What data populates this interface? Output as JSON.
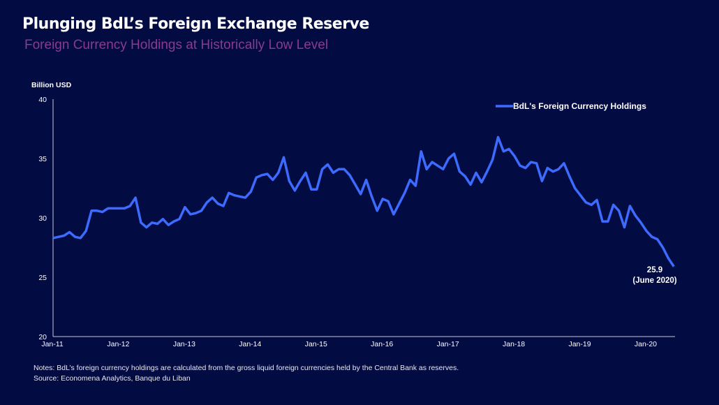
{
  "title": "Plunging BdL’s Foreign Exchange Reserve",
  "subtitle": "Foreign Currency Holdings at Historically Low Level",
  "notes": "Notes: BdL’s foreign currency holdings are calculated from the gross liquid foreign currencies held by the Central Bank as reserves.",
  "source": "Source: Economena Analytics, Banque du Liban",
  "colors": {
    "background": "#020b42",
    "line": "#3d6bff",
    "subtitle": "#8a3a92"
  },
  "chart_data": {
    "type": "line",
    "title": "Plunging BdL’s Foreign Exchange Reserve",
    "ylabel": "Billion USD",
    "xlabel": "",
    "ylim": [
      20,
      40
    ],
    "yticks": [
      "20",
      "25",
      "30",
      "35",
      "40"
    ],
    "xticks": [
      "Jan-11",
      "Jan-12",
      "Jan-13",
      "Jan-14",
      "Jan-15",
      "Jan-16",
      "Jan-17",
      "Jan-18",
      "Jan-19",
      "Jan-20"
    ],
    "grid": false,
    "legend": "top-right",
    "annotation": {
      "value": "25.9",
      "label": "(June 2020)"
    },
    "series": [
      {
        "name": "BdL's Foreign Currency Holdings",
        "x": [
          "2011-01",
          "2011-02",
          "2011-03",
          "2011-04",
          "2011-05",
          "2011-06",
          "2011-07",
          "2011-08",
          "2011-09",
          "2011-10",
          "2011-11",
          "2011-12",
          "2012-01",
          "2012-02",
          "2012-03",
          "2012-04",
          "2012-05",
          "2012-06",
          "2012-07",
          "2012-08",
          "2012-09",
          "2012-10",
          "2012-11",
          "2012-12",
          "2013-01",
          "2013-02",
          "2013-03",
          "2013-04",
          "2013-05",
          "2013-06",
          "2013-07",
          "2013-08",
          "2013-09",
          "2013-10",
          "2013-11",
          "2013-12",
          "2014-01",
          "2014-02",
          "2014-03",
          "2014-04",
          "2014-05",
          "2014-06",
          "2014-07",
          "2014-08",
          "2014-09",
          "2014-10",
          "2014-11",
          "2014-12",
          "2015-01",
          "2015-02",
          "2015-03",
          "2015-04",
          "2015-05",
          "2015-06",
          "2015-07",
          "2015-08",
          "2015-09",
          "2015-10",
          "2015-11",
          "2015-12",
          "2016-01",
          "2016-02",
          "2016-03",
          "2016-04",
          "2016-05",
          "2016-06",
          "2016-07",
          "2016-08",
          "2016-09",
          "2016-10",
          "2016-11",
          "2016-12",
          "2017-01",
          "2017-02",
          "2017-03",
          "2017-04",
          "2017-05",
          "2017-06",
          "2017-07",
          "2017-08",
          "2017-09",
          "2017-10",
          "2017-11",
          "2017-12",
          "2018-01",
          "2018-02",
          "2018-03",
          "2018-04",
          "2018-05",
          "2018-06",
          "2018-07",
          "2018-08",
          "2018-09",
          "2018-10",
          "2018-11",
          "2018-12",
          "2019-01",
          "2019-02",
          "2019-03",
          "2019-04",
          "2019-05",
          "2019-06",
          "2019-07",
          "2019-08",
          "2019-09",
          "2019-10",
          "2019-11",
          "2019-12",
          "2020-01",
          "2020-02",
          "2020-03",
          "2020-04",
          "2020-05",
          "2020-06"
        ],
        "values": [
          28.3,
          28.4,
          28.5,
          28.8,
          28.4,
          28.3,
          28.9,
          30.6,
          30.6,
          30.5,
          30.8,
          30.8,
          30.8,
          30.8,
          31.0,
          31.7,
          29.6,
          29.2,
          29.6,
          29.5,
          29.9,
          29.4,
          29.7,
          29.9,
          30.9,
          30.3,
          30.4,
          30.6,
          31.3,
          31.7,
          31.2,
          31.0,
          32.1,
          31.9,
          31.8,
          31.7,
          32.2,
          33.4,
          33.6,
          33.7,
          33.2,
          33.8,
          35.1,
          33.1,
          32.3,
          33.1,
          33.8,
          32.4,
          32.4,
          34.1,
          34.5,
          33.8,
          34.1,
          34.1,
          33.6,
          32.8,
          32.0,
          33.2,
          31.8,
          30.6,
          31.6,
          31.4,
          30.3,
          31.2,
          32.1,
          33.2,
          32.7,
          35.6,
          34.1,
          34.7,
          34.4,
          34.1,
          35.0,
          35.4,
          33.9,
          33.5,
          32.8,
          33.8,
          33.0,
          33.9,
          34.9,
          36.8,
          35.6,
          35.8,
          35.2,
          34.4,
          34.2,
          34.7,
          34.6,
          33.1,
          34.2,
          33.9,
          34.1,
          34.6,
          33.5,
          32.5,
          31.9,
          31.3,
          31.1,
          31.5,
          29.7,
          29.7,
          31.1,
          30.6,
          29.2,
          31.0,
          30.2,
          29.6,
          28.9,
          28.4,
          28.2,
          27.5,
          26.6,
          25.9
        ]
      }
    ]
  }
}
